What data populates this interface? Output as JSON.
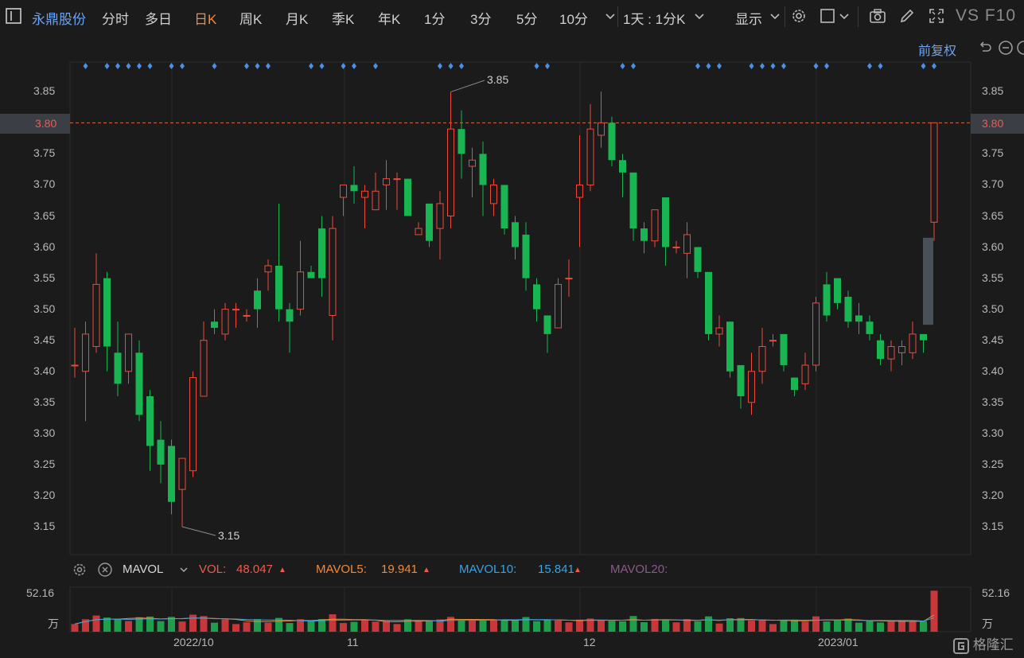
{
  "toolbar": {
    "stock_name": "永鼎股份",
    "periods": [
      "分时",
      "多日",
      "日K",
      "周K",
      "月K",
      "季K",
      "年K",
      "1分",
      "3分",
      "5分",
      "10分"
    ],
    "active_period": "日K",
    "multi_period": "1天 : 1分K",
    "display_label": "显示",
    "vs_label": "VS",
    "f10_label": "F10"
  },
  "adjust_label": "前复权",
  "colors": {
    "up": "#ee4a3c",
    "down": "#18b552",
    "bg": "#1b1b1b",
    "grid": "#2a2a2a",
    "dot": "#4a8fe8",
    "accent": "#f08a3a"
  },
  "chart_data": {
    "type": "candlestick",
    "y_ticks": [
      "3.85",
      "3.80",
      "3.75",
      "3.70",
      "3.65",
      "3.60",
      "3.55",
      "3.50",
      "3.45",
      "3.40",
      "3.35",
      "3.30",
      "3.25",
      "3.20",
      "3.15"
    ],
    "ylim": [
      3.1,
      3.88
    ],
    "current_price": "3.80",
    "annotations": {
      "high": "3.85",
      "low": "3.15"
    },
    "x_labels": [
      "2022/10",
      "11",
      "12",
      "2023/01"
    ],
    "candles": [
      [
        3.41,
        3.41,
        3.47,
        3.39
      ],
      [
        3.4,
        3.46,
        3.48,
        3.32
      ],
      [
        3.44,
        3.54,
        3.59,
        3.43
      ],
      [
        3.55,
        3.44,
        3.56,
        3.4
      ],
      [
        3.43,
        3.38,
        3.48,
        3.36
      ],
      [
        3.4,
        3.46,
        3.46,
        3.38
      ],
      [
        3.43,
        3.33,
        3.45,
        3.32
      ],
      [
        3.36,
        3.28,
        3.37,
        3.24
      ],
      [
        3.29,
        3.25,
        3.32,
        3.22
      ],
      [
        3.28,
        3.19,
        3.29,
        3.17
      ],
      [
        3.21,
        3.26,
        3.26,
        3.15
      ],
      [
        3.24,
        3.39,
        3.4,
        3.23
      ],
      [
        3.36,
        3.45,
        3.48,
        3.36
      ],
      [
        3.48,
        3.47,
        3.5,
        3.46
      ],
      [
        3.46,
        3.5,
        3.51,
        3.45
      ],
      [
        3.5,
        3.5,
        3.51,
        3.47
      ],
      [
        3.49,
        3.49,
        3.5,
        3.48
      ],
      [
        3.53,
        3.5,
        3.55,
        3.47
      ],
      [
        3.56,
        3.57,
        3.58,
        3.53
      ],
      [
        3.57,
        3.5,
        3.67,
        3.48
      ],
      [
        3.5,
        3.48,
        3.51,
        3.43
      ],
      [
        3.5,
        3.56,
        3.61,
        3.49
      ],
      [
        3.56,
        3.55,
        3.57,
        3.55
      ],
      [
        3.63,
        3.55,
        3.65,
        3.52
      ],
      [
        3.49,
        3.63,
        3.65,
        3.45
      ],
      [
        3.68,
        3.7,
        3.7,
        3.65
      ],
      [
        3.7,
        3.69,
        3.73,
        3.67
      ],
      [
        3.68,
        3.69,
        3.7,
        3.63
      ],
      [
        3.66,
        3.69,
        3.72,
        3.66
      ],
      [
        3.7,
        3.71,
        3.74,
        3.66
      ],
      [
        3.71,
        3.71,
        3.72,
        3.66
      ],
      [
        3.71,
        3.65,
        3.71,
        3.65
      ],
      [
        3.62,
        3.63,
        3.64,
        3.62
      ],
      [
        3.67,
        3.61,
        3.67,
        3.6
      ],
      [
        3.63,
        3.67,
        3.69,
        3.58
      ],
      [
        3.65,
        3.79,
        3.85,
        3.63
      ],
      [
        3.79,
        3.75,
        3.82,
        3.71
      ],
      [
        3.73,
        3.74,
        3.76,
        3.68
      ],
      [
        3.75,
        3.7,
        3.77,
        3.65
      ],
      [
        3.67,
        3.7,
        3.71,
        3.65
      ],
      [
        3.7,
        3.63,
        3.7,
        3.62
      ],
      [
        3.64,
        3.6,
        3.65,
        3.58
      ],
      [
        3.62,
        3.55,
        3.64,
        3.53
      ],
      [
        3.54,
        3.5,
        3.55,
        3.48
      ],
      [
        3.49,
        3.46,
        3.49,
        3.43
      ],
      [
        3.47,
        3.54,
        3.55,
        3.47
      ],
      [
        3.55,
        3.55,
        3.58,
        3.52
      ],
      [
        3.68,
        3.7,
        3.78,
        3.6
      ],
      [
        3.7,
        3.79,
        3.83,
        3.69
      ],
      [
        3.78,
        3.8,
        3.85,
        3.76
      ],
      [
        3.8,
        3.74,
        3.81,
        3.73
      ],
      [
        3.74,
        3.72,
        3.75,
        3.68
      ],
      [
        3.72,
        3.63,
        3.72,
        3.61
      ],
      [
        3.63,
        3.61,
        3.64,
        3.59
      ],
      [
        3.61,
        3.66,
        3.66,
        3.6
      ],
      [
        3.68,
        3.6,
        3.68,
        3.57
      ],
      [
        3.6,
        3.6,
        3.61,
        3.59
      ],
      [
        3.59,
        3.62,
        3.64,
        3.55
      ],
      [
        3.6,
        3.56,
        3.6,
        3.55
      ],
      [
        3.56,
        3.46,
        3.56,
        3.45
      ],
      [
        3.46,
        3.47,
        3.49,
        3.44
      ],
      [
        3.48,
        3.4,
        3.48,
        3.39
      ],
      [
        3.41,
        3.36,
        3.41,
        3.34
      ],
      [
        3.35,
        3.4,
        3.43,
        3.33
      ],
      [
        3.4,
        3.44,
        3.47,
        3.38
      ],
      [
        3.45,
        3.45,
        3.46,
        3.44
      ],
      [
        3.46,
        3.41,
        3.46,
        3.4
      ],
      [
        3.39,
        3.37,
        3.39,
        3.36
      ],
      [
        3.38,
        3.41,
        3.43,
        3.37
      ],
      [
        3.41,
        3.51,
        3.52,
        3.4
      ],
      [
        3.54,
        3.49,
        3.56,
        3.48
      ],
      [
        3.55,
        3.51,
        3.55,
        3.5
      ],
      [
        3.52,
        3.48,
        3.53,
        3.47
      ],
      [
        3.49,
        3.48,
        3.51,
        3.46
      ],
      [
        3.48,
        3.46,
        3.49,
        3.45
      ],
      [
        3.45,
        3.42,
        3.46,
        3.41
      ],
      [
        3.42,
        3.44,
        3.45,
        3.4
      ],
      [
        3.43,
        3.44,
        3.45,
        3.41
      ],
      [
        3.43,
        3.46,
        3.48,
        3.42
      ],
      [
        3.46,
        3.45,
        3.46,
        3.43
      ],
      [
        3.64,
        3.8,
        3.8,
        3.61
      ]
    ],
    "indicator": {
      "name": "MAVOL",
      "vol_label": "VOL:",
      "vol_value": "48.047",
      "ma5_label": "MAVOL5:",
      "ma5_value": "19.941",
      "ma10_label": "MAVOL10:",
      "ma10_value": "15.841",
      "ma20_label": "MAVOL20:",
      "y_max": "52.16",
      "unit": "万"
    }
  }
}
